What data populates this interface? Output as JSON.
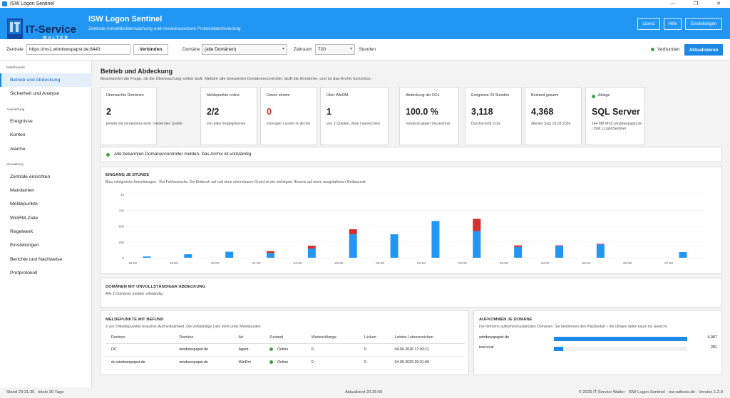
{
  "window": {
    "title": "ISW Logon Sentinel"
  },
  "header": {
    "logo_text": "IT-Service",
    "logo_sub": "WALTER",
    "title": "ISW Logon Sentinel",
    "subtitle": "Zentrale Anmeldeüberwachung und revisionssichere Protokollarchivierung",
    "buttons": {
      "license": "Lizenz",
      "help": "Hilfe",
      "settings": "Einstellungen"
    }
  },
  "toolbar": {
    "central_label": "Zentrale",
    "central_value": "https://ms1.windowspapst.de:8443",
    "connect_label": "Verbinden",
    "domain_label": "Domäne",
    "domain_value": "(alle Domänen)",
    "period_label": "Zeitraum",
    "period_value": "720",
    "period_unit": "Stunden",
    "status": "Verbunden",
    "refresh_label": "Aktualisieren"
  },
  "sidebar": {
    "sections": [
      {
        "title": "Dashboards",
        "items": [
          "Betrieb und Abdeckung",
          "Sicherheit und Analyse"
        ]
      },
      {
        "title": "Auswertung",
        "items": [
          "Ereignisse",
          "Konten",
          "Alarme"
        ]
      },
      {
        "title": "Verwaltung",
        "items": [
          "Zentrale einrichten",
          "Mandanten",
          "Meldepunkte",
          "WinRM-Ziele",
          "Regelwerk",
          "Einstellungen",
          "Berichte und Nachweise",
          "Prüfprotokoll"
        ]
      }
    ]
  },
  "page": {
    "title": "Betrieb und Abdeckung",
    "subtitle": "Beantwortet die Frage, ob die Überwachung selbst läuft: Melden alle bekannten Domänencontroller, läuft die Annahme, und ist das Archiv lückenlos."
  },
  "kpis": [
    {
      "title": "Überwachte Domänen",
      "value": "2",
      "hint": "jeweils mit mindestens einer meldenden Quelle"
    },
    {
      "title": "Meldepunkte online",
      "value": "2/2",
      "hint": "von allen freigegebenen"
    },
    {
      "title": "Davon stumm",
      "value": "0",
      "hint": "erzeugen Lücken im Archiv"
    },
    {
      "title": "Über WinRM",
      "value": "1",
      "hint": "von 3 Quellen, ohne Leserechten"
    },
    {
      "title": "Abdeckung der DCs",
      "value": "100.0 %",
      "hint": "meldend gegen Verzeichnis"
    },
    {
      "title": "Ereignisse 24 Stunden",
      "value": "3,118",
      "hint": "Durchschnitt 0.0/s"
    },
    {
      "title": "Bestand gesamt",
      "value": "4,368",
      "hint": "ältester Satz 03.09.2026"
    },
    {
      "title": "Ablage",
      "value": "SQL Server",
      "hint": "144 MB MSZ.windowspapst.de / ISW_LogonSentinel"
    }
  ],
  "alert": {
    "text": "Alle bekannten Domänencontroller melden. Das Archiv ist vollständig."
  },
  "chart_section": {
    "title": "EINGANG JE STUNDE",
    "subtitle": "Blau erfolgreiche Anmeldungen · Rot Fehlversuche. Ein Einbruch auf null ohne erkennbaren Grund ist der wichtigste Hinweis auf einen ausgefallenen Meldepunkt."
  },
  "chart_data": {
    "type": "bar",
    "stacked": true,
    "x_ticks": [
      "18:00",
      "19:00",
      "20:00",
      "21:00",
      "22:00",
      "23:00",
      "00:00",
      "01:00",
      "02:00",
      "03:00",
      "04:00",
      "05:00",
      "06:00",
      "07:00"
    ],
    "y_ticks": [
      "0",
      "250",
      "500",
      "750",
      "1k"
    ],
    "ylim": [
      0,
      1000
    ],
    "categories": [
      "18:30",
      "19:30",
      "20:30",
      "21:30",
      "22:30",
      "23:30",
      "00:30",
      "01:30",
      "02:30",
      "03:30",
      "04:30",
      "05:30",
      "06:30",
      "07:30"
    ],
    "series": [
      {
        "name": "Blau erfolgreiche Anmeldungen",
        "color": "#2196f3",
        "values": [
          20,
          55,
          95,
          75,
          145,
          370,
          370,
          580,
          420,
          170,
          185,
          210,
          0,
          90
        ]
      },
      {
        "name": "Rot Fehlversuche",
        "color": "#d32f2f",
        "values": [
          0,
          0,
          0,
          30,
          45,
          80,
          0,
          0,
          195,
          25,
          10,
          10,
          0,
          0
        ]
      }
    ],
    "grid": true
  },
  "coverage": {
    "title": "DOMÄNEN MIT UNVOLLSTÄNDIGER ABDECKUNG",
    "subtitle": "Alle 2 Domänen melden vollständig."
  },
  "meldepunkte": {
    "title": "MELDEPUNKTE MIT BEFUND",
    "subtitle": "2 von 3 Meldepunkten brauchen Aufmerksamkeit. Die vollständige Liste steht unter Meldepunkte.",
    "columns": [
      "Rechner",
      "Domäne",
      "Art",
      "Zustand",
      "Warteschlange",
      "Lücken",
      "Letztes Lebenszeichen"
    ],
    "rows": [
      [
        "DC",
        "windowspapst.de",
        "Agent",
        "Online",
        "0",
        "0",
        "04.09.2026 17:03:11"
      ],
      [
        "dc.windowspapst.de",
        "windowspapst.de",
        "WinRm",
        "Online",
        "0",
        "0",
        "04.09.2026 20:31:56"
      ]
    ]
  },
  "domains": {
    "title": "AUFKOMMEN JE DOMÄNE",
    "subtitle": "Die fünfzehn aufkommensstärksten Domänen. Sie bestimmen den Platzbedarf – die übrigen fallen kaum ins Gewicht.",
    "rows": [
      {
        "name": "windowspapst.de",
        "count": "4,087",
        "fraction": 1.0
      },
      {
        "name": "isw.local",
        "count": "281",
        "fraction": 0.069
      }
    ]
  },
  "statusbar": {
    "left": "Stand 20:31:35 · letzte 30 Tage",
    "center": "Aktualisiert 20:35:56",
    "right": "© 2026 IT-Service Walter · ISW Logon Sentinel · isw-adtools.de · Version 1.2.0"
  }
}
